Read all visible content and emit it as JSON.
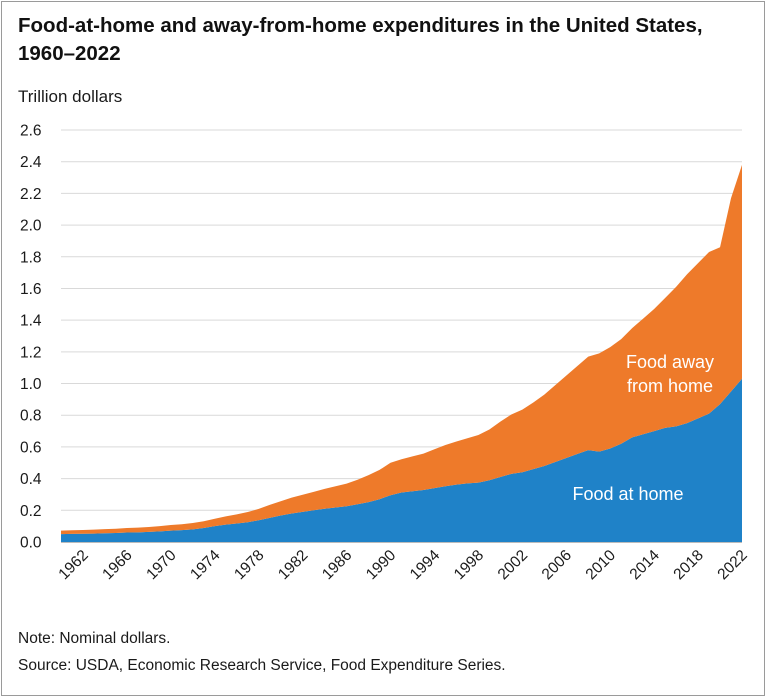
{
  "figure": {
    "title": "Food-at-home and away-from-home expenditures in the United States, 1960–2022",
    "y_unit_label": "Trillion dollars",
    "note": "Note: Nominal dollars.",
    "source": "Source: USDA, Economic Research Service, Food Expenditure Series."
  },
  "chart_data": {
    "type": "area",
    "stacked": true,
    "x": [
      1960,
      1961,
      1962,
      1963,
      1964,
      1965,
      1966,
      1967,
      1968,
      1969,
      1970,
      1971,
      1972,
      1973,
      1974,
      1975,
      1976,
      1977,
      1978,
      1979,
      1980,
      1981,
      1982,
      1983,
      1984,
      1985,
      1986,
      1987,
      1988,
      1989,
      1990,
      1991,
      1992,
      1993,
      1994,
      1995,
      1996,
      1997,
      1998,
      1999,
      2000,
      2001,
      2002,
      2003,
      2004,
      2005,
      2006,
      2007,
      2008,
      2009,
      2010,
      2011,
      2012,
      2013,
      2014,
      2015,
      2016,
      2017,
      2018,
      2019,
      2020,
      2021,
      2022
    ],
    "series": [
      {
        "name": "Food at home",
        "color": "#1f82c8",
        "values": [
          0.05,
          0.051,
          0.052,
          0.053,
          0.055,
          0.057,
          0.06,
          0.061,
          0.064,
          0.067,
          0.072,
          0.075,
          0.08,
          0.088,
          0.1,
          0.11,
          0.117,
          0.125,
          0.137,
          0.152,
          0.167,
          0.18,
          0.19,
          0.2,
          0.21,
          0.218,
          0.226,
          0.238,
          0.252,
          0.27,
          0.295,
          0.312,
          0.32,
          0.328,
          0.34,
          0.352,
          0.362,
          0.37,
          0.375,
          0.39,
          0.41,
          0.43,
          0.44,
          0.46,
          0.48,
          0.505,
          0.53,
          0.555,
          0.58,
          0.57,
          0.59,
          0.62,
          0.66,
          0.68,
          0.7,
          0.72,
          0.73,
          0.75,
          0.78,
          0.81,
          0.87,
          0.95,
          1.03
        ]
      },
      {
        "name": "Food away from home",
        "color": "#ee7a2a",
        "values": [
          0.022,
          0.023,
          0.024,
          0.025,
          0.026,
          0.027,
          0.028,
          0.03,
          0.031,
          0.033,
          0.035,
          0.037,
          0.04,
          0.043,
          0.047,
          0.052,
          0.057,
          0.064,
          0.072,
          0.082,
          0.09,
          0.1,
          0.108,
          0.116,
          0.125,
          0.134,
          0.142,
          0.155,
          0.17,
          0.185,
          0.205,
          0.21,
          0.22,
          0.23,
          0.245,
          0.26,
          0.272,
          0.285,
          0.3,
          0.32,
          0.35,
          0.375,
          0.395,
          0.42,
          0.45,
          0.485,
          0.52,
          0.555,
          0.59,
          0.62,
          0.64,
          0.66,
          0.69,
          0.73,
          0.77,
          0.82,
          0.88,
          0.94,
          0.98,
          1.02,
          0.99,
          1.22,
          1.35
        ]
      }
    ],
    "series_labels": [
      "Food at home",
      "Food away\nfrom home"
    ],
    "ylim": [
      0,
      2.6
    ],
    "yticks": [
      0.0,
      0.2,
      0.4,
      0.6,
      0.8,
      1.0,
      1.2,
      1.4,
      1.6,
      1.8,
      2.0,
      2.2,
      2.4,
      2.6
    ],
    "ytick_labels": [
      "0.0",
      "0.2",
      "0.4",
      "0.6",
      "0.8",
      "1.0",
      "1.2",
      "1.4",
      "1.6",
      "1.8",
      "2.0",
      "2.2",
      "2.4",
      "2.6"
    ],
    "xticks": [
      1962,
      1966,
      1970,
      1974,
      1978,
      1982,
      1986,
      1990,
      1994,
      1998,
      2002,
      2006,
      2010,
      2014,
      2018,
      2022
    ],
    "xtick_labels": [
      "1962",
      "1966",
      "1970",
      "1974",
      "1978",
      "1982",
      "1986",
      "1990",
      "1994",
      "1998",
      "2002",
      "2006",
      "2010",
      "2014",
      "2018",
      "2022"
    ],
    "xlim": [
      1960,
      2022
    ],
    "grid": true,
    "legend": "none (direct labels on areas)"
  }
}
